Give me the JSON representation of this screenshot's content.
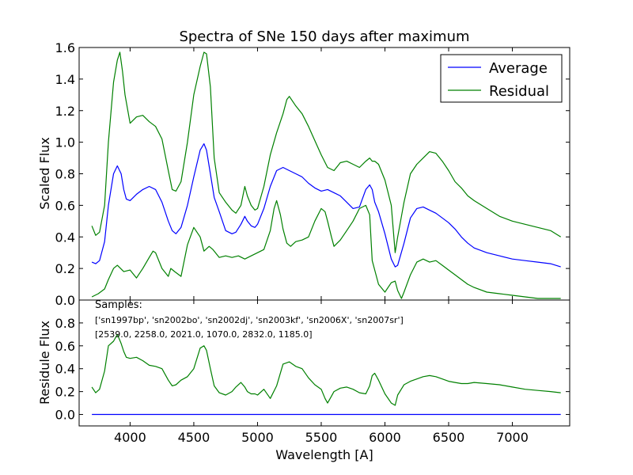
{
  "chart_data": [
    {
      "type": "line",
      "panel": "top",
      "title": "Spectra of SNe 150 days after maximum",
      "xlabel": "",
      "ylabel": "Scaled Flux",
      "xlim": [
        3600,
        7450
      ],
      "ylim": [
        0.0,
        1.6
      ],
      "yticks": [
        0.0,
        0.2,
        0.4,
        0.6,
        0.8,
        1.0,
        1.2,
        1.4,
        1.6
      ],
      "ytick_labels": [
        "0.0",
        "0.2",
        "0.4",
        "0.6",
        "0.8",
        "1.0",
        "1.2",
        "1.4",
        "1.6"
      ],
      "grid": false,
      "legend": "top-right",
      "series": [
        {
          "name": "Average",
          "color": "#0000ff",
          "x": [
            3700,
            3730,
            3760,
            3800,
            3830,
            3870,
            3900,
            3930,
            3950,
            3970,
            4000,
            4050,
            4100,
            4150,
            4200,
            4250,
            4300,
            4330,
            4360,
            4400,
            4450,
            4500,
            4550,
            4580,
            4600,
            4630,
            4660,
            4700,
            4750,
            4800,
            4830,
            4870,
            4900,
            4920,
            4950,
            4980,
            5000,
            5050,
            5100,
            5150,
            5200,
            5250,
            5300,
            5350,
            5400,
            5450,
            5500,
            5550,
            5600,
            5650,
            5700,
            5750,
            5800,
            5850,
            5880,
            5900,
            5920,
            5950,
            6000,
            6050,
            6080,
            6100,
            6150,
            6200,
            6250,
            6300,
            6350,
            6400,
            6450,
            6500,
            6550,
            6600,
            6650,
            6700,
            6800,
            6900,
            7000,
            7100,
            7200,
            7300,
            7380
          ],
          "y": [
            0.24,
            0.23,
            0.25,
            0.37,
            0.6,
            0.8,
            0.85,
            0.8,
            0.7,
            0.64,
            0.63,
            0.67,
            0.7,
            0.72,
            0.7,
            0.62,
            0.5,
            0.44,
            0.42,
            0.46,
            0.6,
            0.78,
            0.95,
            0.99,
            0.95,
            0.8,
            0.65,
            0.56,
            0.44,
            0.42,
            0.43,
            0.48,
            0.53,
            0.5,
            0.47,
            0.46,
            0.48,
            0.58,
            0.72,
            0.82,
            0.84,
            0.82,
            0.8,
            0.78,
            0.74,
            0.71,
            0.69,
            0.7,
            0.68,
            0.66,
            0.62,
            0.58,
            0.59,
            0.7,
            0.73,
            0.7,
            0.62,
            0.56,
            0.42,
            0.26,
            0.21,
            0.22,
            0.36,
            0.52,
            0.58,
            0.59,
            0.57,
            0.55,
            0.52,
            0.49,
            0.45,
            0.4,
            0.36,
            0.33,
            0.3,
            0.28,
            0.26,
            0.25,
            0.24,
            0.23,
            0.21
          ]
        },
        {
          "name": "Residual",
          "color": "#008000",
          "x": [
            3700,
            3730,
            3760,
            3800,
            3830,
            3870,
            3900,
            3920,
            3940,
            3960,
            4000,
            4050,
            4100,
            4150,
            4200,
            4250,
            4300,
            4330,
            4360,
            4400,
            4450,
            4500,
            4550,
            4580,
            4600,
            4630,
            4660,
            4700,
            4750,
            4800,
            4830,
            4870,
            4900,
            4920,
            4950,
            4980,
            5000,
            5050,
            5100,
            5150,
            5200,
            5230,
            5250,
            5300,
            5350,
            5400,
            5450,
            5500,
            5550,
            5600,
            5650,
            5700,
            5750,
            5800,
            5850,
            5880,
            5900,
            5920,
            5950,
            6000,
            6050,
            6080,
            6100,
            6150,
            6200,
            6250,
            6300,
            6350,
            6400,
            6450,
            6500,
            6550,
            6600,
            6650,
            6700,
            6800,
            6900,
            7000,
            7100,
            7200,
            7300,
            7380
          ],
          "y": [
            0.47,
            0.41,
            0.43,
            0.6,
            1.0,
            1.38,
            1.52,
            1.57,
            1.45,
            1.3,
            1.12,
            1.16,
            1.17,
            1.13,
            1.1,
            1.02,
            0.82,
            0.7,
            0.69,
            0.75,
            1.0,
            1.3,
            1.48,
            1.57,
            1.56,
            1.35,
            0.9,
            0.68,
            0.62,
            0.57,
            0.55,
            0.6,
            0.72,
            0.66,
            0.6,
            0.57,
            0.58,
            0.72,
            0.92,
            1.06,
            1.18,
            1.27,
            1.29,
            1.23,
            1.18,
            1.1,
            1.01,
            0.92,
            0.84,
            0.82,
            0.87,
            0.88,
            0.86,
            0.84,
            0.88,
            0.9,
            0.88,
            0.88,
            0.86,
            0.76,
            0.6,
            0.3,
            0.4,
            0.62,
            0.8,
            0.86,
            0.9,
            0.94,
            0.93,
            0.88,
            0.82,
            0.75,
            0.71,
            0.66,
            0.63,
            0.58,
            0.53,
            0.5,
            0.48,
            0.46,
            0.44,
            0.4
          ]
        },
        {
          "name": "",
          "color": "#008000",
          "x": [
            3700,
            3750,
            3800,
            3830,
            3870,
            3900,
            3950,
            4000,
            4050,
            4100,
            4150,
            4180,
            4200,
            4250,
            4300,
            4320,
            4350,
            4400,
            4450,
            4500,
            4550,
            4580,
            4620,
            4650,
            4700,
            4750,
            4800,
            4850,
            4900,
            4950,
            5000,
            5050,
            5100,
            5130,
            5150,
            5180,
            5200,
            5230,
            5260,
            5300,
            5350,
            5400,
            5450,
            5500,
            5530,
            5550,
            5580,
            5600,
            5650,
            5700,
            5750,
            5800,
            5850,
            5880,
            5900,
            5930,
            5950,
            6000,
            6050,
            6080,
            6100,
            6130,
            6150,
            6200,
            6250,
            6300,
            6350,
            6400,
            6450,
            6500,
            6550,
            6600,
            6650,
            6700,
            6800,
            6900,
            7000,
            7100,
            7200,
            7300,
            7380
          ],
          "y": [
            0.02,
            0.04,
            0.07,
            0.13,
            0.2,
            0.22,
            0.18,
            0.19,
            0.14,
            0.2,
            0.27,
            0.31,
            0.3,
            0.2,
            0.15,
            0.2,
            0.18,
            0.15,
            0.35,
            0.46,
            0.4,
            0.31,
            0.34,
            0.32,
            0.27,
            0.28,
            0.27,
            0.28,
            0.26,
            0.28,
            0.3,
            0.32,
            0.44,
            0.58,
            0.63,
            0.54,
            0.45,
            0.36,
            0.34,
            0.37,
            0.38,
            0.4,
            0.5,
            0.58,
            0.56,
            0.5,
            0.4,
            0.34,
            0.38,
            0.44,
            0.5,
            0.58,
            0.6,
            0.54,
            0.25,
            0.16,
            0.1,
            0.05,
            0.11,
            0.12,
            0.06,
            0.01,
            0.05,
            0.16,
            0.24,
            0.26,
            0.24,
            0.25,
            0.22,
            0.19,
            0.16,
            0.13,
            0.1,
            0.08,
            0.05,
            0.04,
            0.03,
            0.02,
            0.01,
            0.01,
            0.01
          ]
        }
      ]
    },
    {
      "type": "line",
      "panel": "bottom",
      "xlabel": "Wavelength [A]",
      "ylabel": "Residule Flux",
      "xlim": [
        3600,
        7450
      ],
      "ylim": [
        -0.1,
        1.0
      ],
      "xticks": [
        4000,
        4500,
        5000,
        5500,
        6000,
        6500,
        7000
      ],
      "xtick_labels": [
        "4000",
        "4500",
        "5000",
        "5500",
        "6000",
        "6500",
        "7000"
      ],
      "yticks": [
        0.0,
        0.2,
        0.4,
        0.6,
        0.8
      ],
      "ytick_labels": [
        "0.0",
        "0.2",
        "0.4",
        "0.6",
        "0.8"
      ],
      "grid": false,
      "annotations": [
        "Samples:",
        "['sn1997bp', 'sn2002bo', 'sn2002dj', 'sn2003kf', 'sn2006X', 'sn2007sr']",
        "[2539.0, 2258.0, 2021.0, 1070.0, 2832.0, 1185.0]"
      ],
      "series": [
        {
          "name": "",
          "color": "#0000ff",
          "x": [
            3700,
            7380
          ],
          "y": [
            0.0,
            0.0
          ]
        },
        {
          "name": "",
          "color": "#008000",
          "x": [
            3700,
            3730,
            3760,
            3800,
            3830,
            3870,
            3900,
            3930,
            3950,
            3970,
            4000,
            4050,
            4100,
            4150,
            4200,
            4250,
            4300,
            4330,
            4360,
            4400,
            4450,
            4500,
            4550,
            4580,
            4600,
            4630,
            4660,
            4700,
            4750,
            4800,
            4830,
            4870,
            4900,
            4920,
            4950,
            4980,
            5000,
            5050,
            5100,
            5150,
            5200,
            5250,
            5300,
            5350,
            5400,
            5450,
            5500,
            5530,
            5550,
            5580,
            5600,
            5650,
            5700,
            5750,
            5800,
            5850,
            5880,
            5900,
            5920,
            5950,
            6000,
            6050,
            6080,
            6100,
            6150,
            6200,
            6250,
            6300,
            6350,
            6400,
            6450,
            6500,
            6550,
            6600,
            6650,
            6700,
            6800,
            6900,
            7000,
            7100,
            7200,
            7300,
            7380
          ],
          "y": [
            0.24,
            0.19,
            0.22,
            0.38,
            0.6,
            0.64,
            0.7,
            0.62,
            0.55,
            0.5,
            0.49,
            0.5,
            0.47,
            0.43,
            0.42,
            0.4,
            0.3,
            0.25,
            0.26,
            0.3,
            0.33,
            0.4,
            0.58,
            0.6,
            0.56,
            0.4,
            0.25,
            0.19,
            0.17,
            0.2,
            0.24,
            0.28,
            0.24,
            0.2,
            0.18,
            0.18,
            0.17,
            0.22,
            0.14,
            0.25,
            0.44,
            0.46,
            0.42,
            0.4,
            0.32,
            0.26,
            0.22,
            0.14,
            0.1,
            0.16,
            0.2,
            0.23,
            0.24,
            0.22,
            0.19,
            0.18,
            0.25,
            0.34,
            0.36,
            0.3,
            0.18,
            0.1,
            0.08,
            0.17,
            0.26,
            0.29,
            0.31,
            0.33,
            0.34,
            0.33,
            0.31,
            0.29,
            0.28,
            0.27,
            0.27,
            0.28,
            0.27,
            0.26,
            0.24,
            0.22,
            0.21,
            0.2,
            0.19
          ]
        }
      ]
    }
  ]
}
